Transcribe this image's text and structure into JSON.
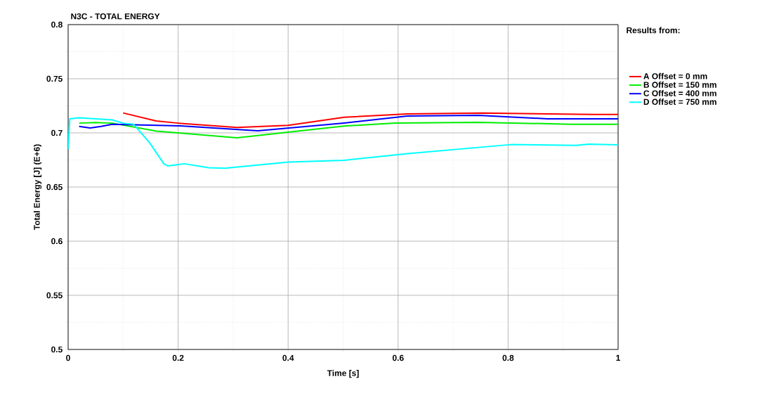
{
  "chart_data": {
    "type": "line",
    "title": "N3C - TOTAL ENERGY",
    "xlabel": "Time [s]",
    "ylabel": "Total Energy [J] (E+6)",
    "legend_title": "Results from:",
    "xlim": [
      0,
      1
    ],
    "ylim": [
      0.5,
      0.8
    ],
    "xticks": [
      0,
      0.2,
      0.4,
      0.6,
      0.8,
      1
    ],
    "yticks": [
      0.5,
      0.55,
      0.6,
      0.65,
      0.7,
      0.75,
      0.8
    ],
    "grid": true,
    "legend": "right",
    "marker": "none",
    "line_style": "solid",
    "series": [
      {
        "name": "A Offset = 0 mm",
        "color": "#ff0000",
        "x": [
          0.1,
          0.16,
          0.2,
          0.307,
          0.4,
          0.502,
          0.617,
          0.753,
          0.8,
          0.953,
          1
        ],
        "values": [
          0.7184,
          0.711,
          0.709,
          0.705,
          0.707,
          0.7145,
          0.7175,
          0.7184,
          0.718,
          0.717,
          0.717
        ]
      },
      {
        "name": "B Offset = 150 mm",
        "color": "#00ee00",
        "x": [
          0.02,
          0.05,
          0.08,
          0.161,
          0.307,
          0.417,
          0.502,
          0.595,
          0.745,
          0.915,
          1
        ],
        "values": [
          0.709,
          0.7095,
          0.709,
          0.7016,
          0.6955,
          0.7016,
          0.7063,
          0.7091,
          0.7098,
          0.708,
          0.708
        ]
      },
      {
        "name": "C Offset = 400 mm",
        "color": "#0000ff",
        "x": [
          0.02,
          0.04,
          0.06,
          0.08,
          0.204,
          0.345,
          0.502,
          0.617,
          0.745,
          0.872,
          1
        ],
        "values": [
          0.706,
          0.7045,
          0.706,
          0.708,
          0.7065,
          0.702,
          0.7091,
          0.7156,
          0.7163,
          0.713,
          0.713
        ]
      },
      {
        "name": "D Offset = 750 mm",
        "color": "#00ffff",
        "x": [
          0,
          0.003,
          0.02,
          0.05,
          0.08,
          0.1,
          0.119,
          0.148,
          0.174,
          0.181,
          0.212,
          0.255,
          0.285,
          0.4,
          0.502,
          0.617,
          0.805,
          0.923,
          0.947,
          1
        ],
        "values": [
          0.685,
          0.713,
          0.714,
          0.713,
          0.712,
          0.709,
          0.708,
          0.691,
          0.6715,
          0.6695,
          0.6715,
          0.6678,
          0.6674,
          0.673,
          0.6747,
          0.6808,
          0.6892,
          0.6884,
          0.6896,
          0.689
        ]
      }
    ]
  }
}
